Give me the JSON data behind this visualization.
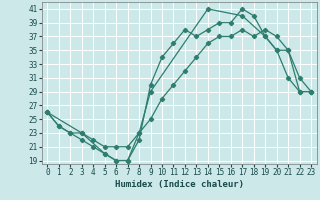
{
  "xlabel": "Humidex (Indice chaleur)",
  "bg_color": "#cce8e8",
  "grid_color": "#ffffff",
  "line_color": "#2e7d6e",
  "xlim": [
    -0.5,
    23.5
  ],
  "ylim": [
    18.5,
    42
  ],
  "yticks": [
    19,
    21,
    23,
    25,
    27,
    29,
    31,
    33,
    35,
    37,
    39,
    41
  ],
  "xticks": [
    0,
    1,
    2,
    3,
    4,
    5,
    6,
    7,
    8,
    9,
    10,
    11,
    12,
    13,
    14,
    15,
    16,
    17,
    18,
    19,
    20,
    21,
    22,
    23
  ],
  "line1_x": [
    0,
    1,
    2,
    3,
    4,
    5,
    6,
    7,
    8,
    9,
    10,
    11,
    12,
    13,
    14,
    15,
    16,
    17,
    18,
    19,
    20,
    21,
    22,
    23
  ],
  "line1_y": [
    26,
    24,
    23,
    22,
    21,
    20,
    19,
    19,
    22,
    30,
    34,
    36,
    38,
    37,
    38,
    39,
    39,
    41,
    40,
    37,
    35,
    35,
    31,
    29
  ],
  "line2_x": [
    0,
    1,
    2,
    3,
    4,
    5,
    6,
    7,
    8,
    9,
    10,
    11,
    12,
    13,
    14,
    15,
    16,
    17,
    18,
    19,
    20,
    21,
    22,
    23
  ],
  "line2_y": [
    26,
    24,
    23,
    23,
    22,
    21,
    21,
    21,
    23,
    25,
    28,
    30,
    32,
    34,
    36,
    37,
    37,
    38,
    37,
    38,
    37,
    35,
    29,
    29
  ],
  "line3_x": [
    0,
    3,
    5,
    6,
    7,
    8,
    9,
    14,
    17,
    19,
    20,
    21,
    22,
    23
  ],
  "line3_y": [
    26,
    23,
    20,
    19,
    19,
    23,
    29,
    41,
    40,
    37,
    35,
    31,
    29,
    29
  ]
}
